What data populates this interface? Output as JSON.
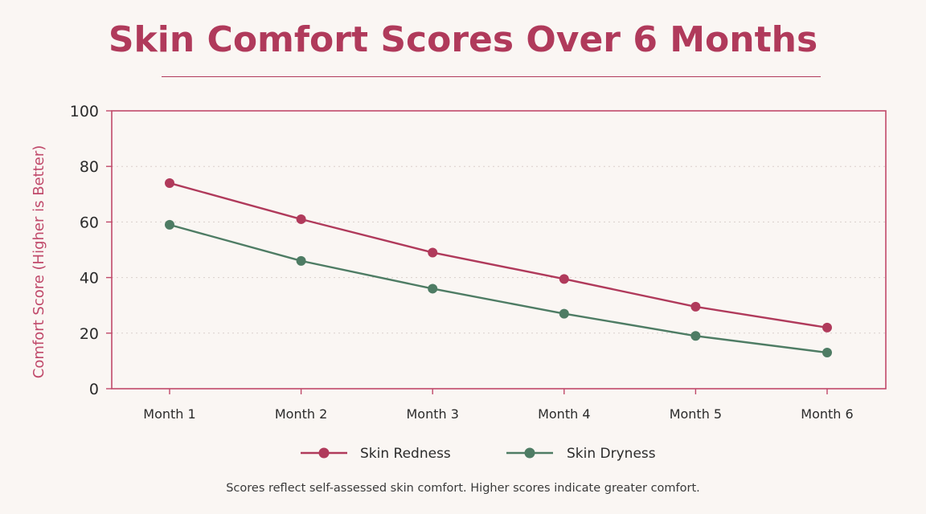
{
  "chart_data": {
    "type": "line",
    "title": "Skin Comfort Scores Over 6 Months",
    "ylabel": "Comfort Score (Higher is Better)",
    "xlabel": "",
    "categories": [
      "Month 1",
      "Month 2",
      "Month 3",
      "Month 4",
      "Month 5",
      "Month 6"
    ],
    "ylim": [
      0,
      100
    ],
    "yticks": [
      0,
      20,
      40,
      60,
      80,
      100
    ],
    "grid": "horizontal dotted",
    "legend": "bottom",
    "series": [
      {
        "name": "Skin Redness",
        "color": "#b03a5b",
        "values": [
          74,
          61,
          49,
          39.5,
          29.5,
          22
        ]
      },
      {
        "name": "Skin Dryness",
        "color": "#4e7c64",
        "values": [
          59,
          46,
          36,
          27,
          19,
          13
        ]
      }
    ],
    "footnote": "Scores reflect self-assessed skin comfort. Higher scores indicate greater comfort."
  },
  "colors": {
    "accent": "#b03a5b",
    "frame": "#c0496a",
    "background": "#faf6f3"
  }
}
